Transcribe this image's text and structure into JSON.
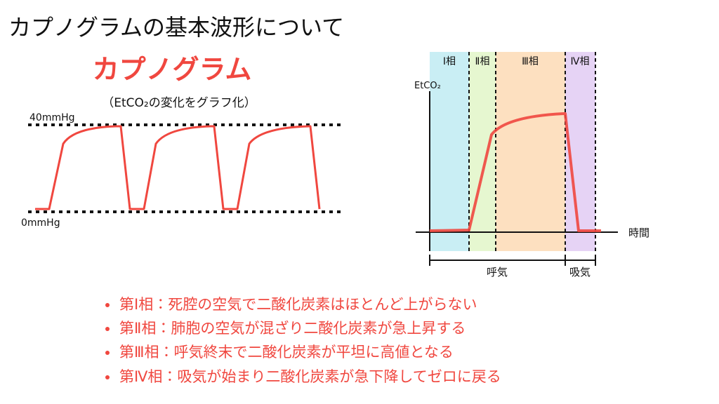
{
  "header": {
    "title": "カプノグラムの基本波形について"
  },
  "left_diagram": {
    "title": "カプノグラム",
    "subtitle": "（EtCO₂の変化をグラフ化）",
    "top_label": "40mmHg",
    "bottom_label": "0mmHg"
  },
  "right_diagram": {
    "phases": [
      "Ⅰ相",
      "Ⅱ相",
      "Ⅲ相",
      "Ⅳ相"
    ],
    "y_label": "EtCO₂",
    "x_label": "時間",
    "spans": [
      "呼気",
      "吸気"
    ]
  },
  "bullets": [
    "第Ⅰ相：死腔の空気で二酸化炭素はほとんど上がらない",
    "第Ⅱ相：肺胞の空気が混ざり二酸化炭素が急上昇する",
    "第Ⅲ相：呼気終末で二酸化炭素が平坦に高値となる",
    "第Ⅳ相：吸気が始まり二酸化炭素が急下降してゼロに戻る"
  ]
}
